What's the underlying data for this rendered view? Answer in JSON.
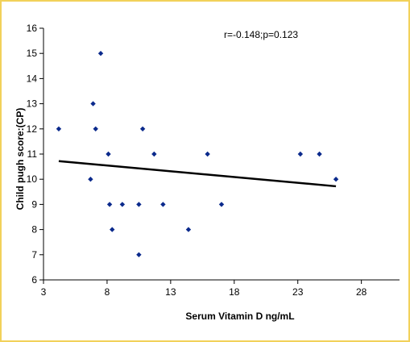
{
  "chart_data": {
    "type": "scatter",
    "title": "",
    "xlabel": "Serum Vitamin D ng/mL",
    "ylabel": "Child pugh score:(CP)",
    "annotation": "r=-0.148;p=0.123",
    "xlim": [
      3,
      31
    ],
    "ylim": [
      6,
      16
    ],
    "xticks": [
      3,
      8,
      13,
      18,
      23,
      28
    ],
    "yticks": [
      6,
      7,
      8,
      9,
      10,
      11,
      12,
      13,
      14,
      15,
      16
    ],
    "grid": false,
    "legend": "none",
    "marker_color": "#0b2a8c",
    "line_color": "#000000",
    "points": [
      {
        "x": 4.2,
        "y": 12
      },
      {
        "x": 6.7,
        "y": 10
      },
      {
        "x": 6.9,
        "y": 13
      },
      {
        "x": 7.1,
        "y": 12
      },
      {
        "x": 7.5,
        "y": 15
      },
      {
        "x": 8.1,
        "y": 11
      },
      {
        "x": 8.2,
        "y": 9
      },
      {
        "x": 8.4,
        "y": 8
      },
      {
        "x": 9.2,
        "y": 9
      },
      {
        "x": 10.5,
        "y": 9
      },
      {
        "x": 10.5,
        "y": 7
      },
      {
        "x": 10.8,
        "y": 12
      },
      {
        "x": 11.7,
        "y": 11
      },
      {
        "x": 12.4,
        "y": 9
      },
      {
        "x": 14.4,
        "y": 8
      },
      {
        "x": 15.9,
        "y": 11
      },
      {
        "x": 17.0,
        "y": 9
      },
      {
        "x": 23.2,
        "y": 11
      },
      {
        "x": 24.7,
        "y": 11
      },
      {
        "x": 26.0,
        "y": 10
      }
    ],
    "trendline": {
      "x": [
        4.2,
        26.0
      ],
      "y": [
        10.72,
        9.72
      ]
    }
  }
}
